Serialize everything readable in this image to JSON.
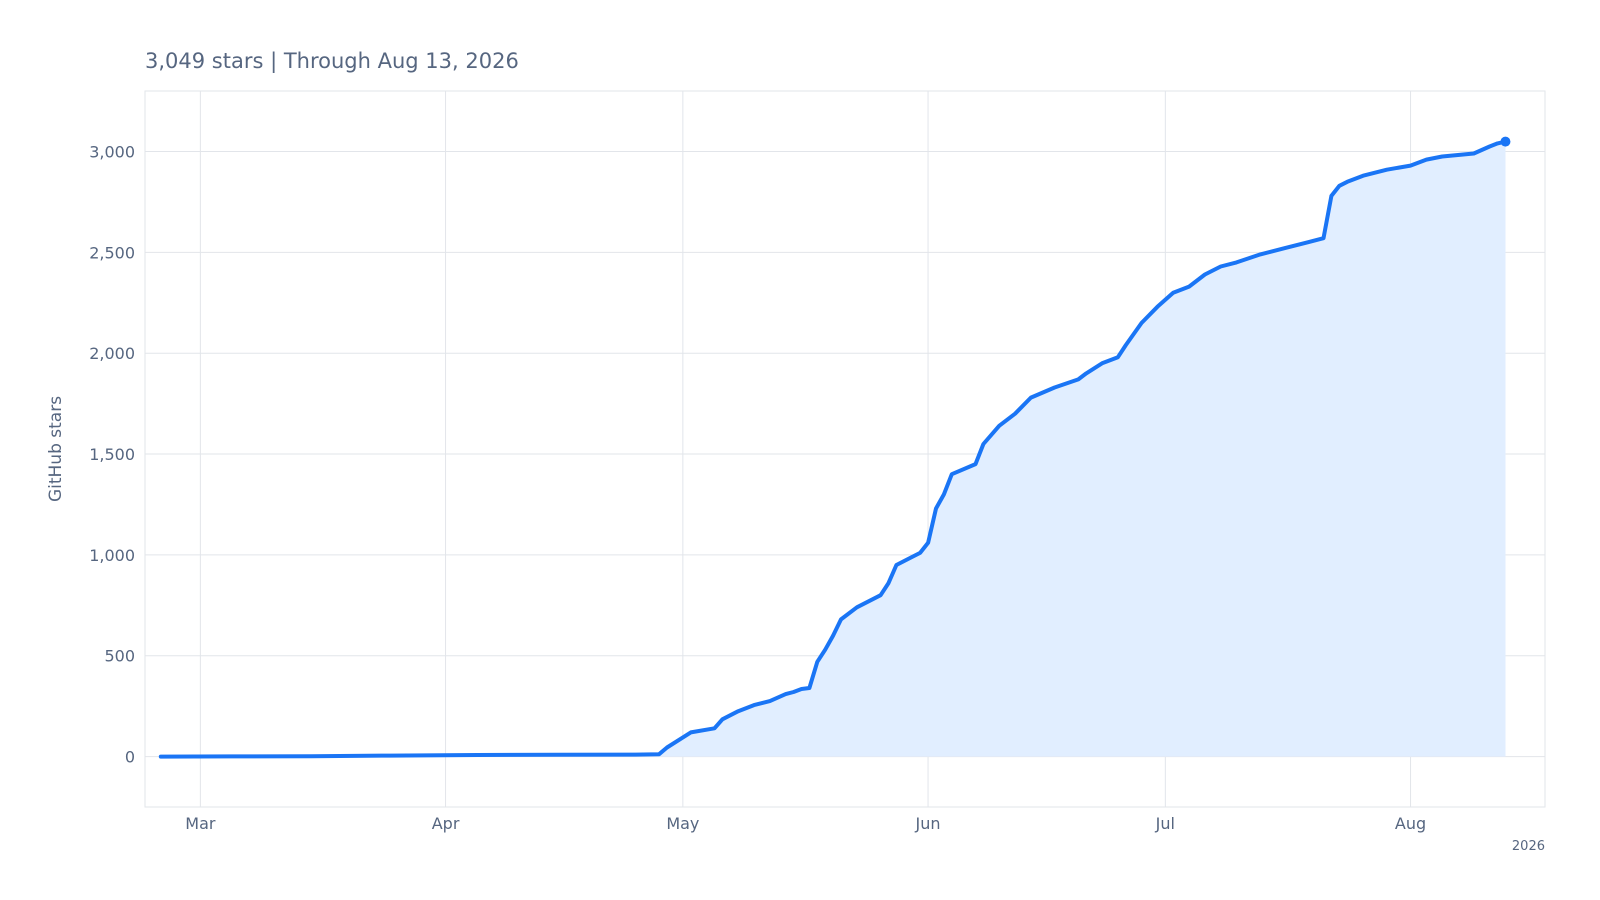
{
  "chart_data": {
    "type": "area",
    "title": "3,049 stars | Through Aug 13, 2026",
    "ylabel": "GitHub stars",
    "xlabel": "",
    "x_axis_type": "date",
    "year_label": "2026",
    "xlim": [
      "2026-02-22",
      "2026-08-18"
    ],
    "ylim": [
      -250,
      3300
    ],
    "x_ticks": [
      {
        "date": "2026-03-01",
        "label": "Mar"
      },
      {
        "date": "2026-04-01",
        "label": "Apr"
      },
      {
        "date": "2026-05-01",
        "label": "May"
      },
      {
        "date": "2026-06-01",
        "label": "Jun"
      },
      {
        "date": "2026-07-01",
        "label": "Jul"
      },
      {
        "date": "2026-08-01",
        "label": "Aug"
      }
    ],
    "y_ticks": [
      {
        "value": 0,
        "label": "0"
      },
      {
        "value": 500,
        "label": "500"
      },
      {
        "value": 1000,
        "label": "1,000"
      },
      {
        "value": 1500,
        "label": "1,500"
      },
      {
        "value": 2000,
        "label": "2,000"
      },
      {
        "value": 2500,
        "label": "2,500"
      },
      {
        "value": 3000,
        "label": "3,000"
      }
    ],
    "grid": true,
    "legend": "none",
    "colors": {
      "line": "#1a75f5",
      "fill": "#e1eeff",
      "grid": "#e2e5ea",
      "text": "#566680"
    },
    "series": [
      {
        "x": [
          "2026-02-24",
          "2026-03-05",
          "2026-03-15",
          "2026-03-25",
          "2026-04-05",
          "2026-04-15",
          "2026-04-25",
          "2026-04-28",
          "2026-04-29",
          "2026-05-01",
          "2026-05-02",
          "2026-05-05",
          "2026-05-06",
          "2026-05-08",
          "2026-05-10",
          "2026-05-12",
          "2026-05-14",
          "2026-05-15",
          "2026-05-16",
          "2026-05-17",
          "2026-05-18",
          "2026-05-19",
          "2026-05-20",
          "2026-05-21",
          "2026-05-23",
          "2026-05-26",
          "2026-05-27",
          "2026-05-28",
          "2026-05-30",
          "2026-05-31",
          "2026-06-01",
          "2026-06-02",
          "2026-06-03",
          "2026-06-04",
          "2026-06-07",
          "2026-06-08",
          "2026-06-10",
          "2026-06-12",
          "2026-06-14",
          "2026-06-17",
          "2026-06-20",
          "2026-06-21",
          "2026-06-23",
          "2026-06-25",
          "2026-06-26",
          "2026-06-28",
          "2026-06-30",
          "2026-07-02",
          "2026-07-04",
          "2026-07-06",
          "2026-07-08",
          "2026-07-10",
          "2026-07-13",
          "2026-07-16",
          "2026-07-19",
          "2026-07-21",
          "2026-07-22",
          "2026-07-23",
          "2026-07-24",
          "2026-07-26",
          "2026-07-29",
          "2026-08-01",
          "2026-08-03",
          "2026-08-05",
          "2026-08-09",
          "2026-08-11",
          "2026-08-12",
          "2026-08-13"
        ],
        "y": [
          0,
          1,
          2,
          5,
          8,
          9,
          10,
          12,
          45,
          95,
          120,
          140,
          185,
          225,
          255,
          275,
          310,
          320,
          335,
          340,
          470,
          530,
          600,
          680,
          740,
          800,
          860,
          950,
          990,
          1010,
          1060,
          1230,
          1300,
          1400,
          1450,
          1550,
          1640,
          1700,
          1780,
          1830,
          1870,
          1900,
          1950,
          1980,
          2040,
          2150,
          2230,
          2300,
          2330,
          2390,
          2430,
          2450,
          2490,
          2520,
          2550,
          2570,
          2780,
          2830,
          2850,
          2880,
          2910,
          2930,
          2960,
          2975,
          2990,
          3025,
          3040,
          3049
        ]
      }
    ],
    "last_point": {
      "x": "2026-08-13",
      "y": 3049
    }
  }
}
